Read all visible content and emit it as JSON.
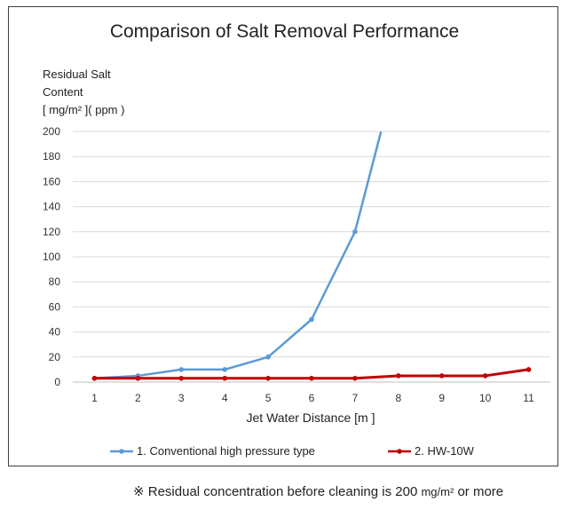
{
  "chart_data": {
    "type": "line",
    "title": "Comparison of Salt Removal Performance",
    "ylabel_lines": [
      "Residual Salt",
      "Content"
    ],
    "ylabel_unit": "[ mg/m² ]( ppm )",
    "xlabel": "Jet Water Distance [m ]",
    "x": [
      1,
      2,
      3,
      4,
      5,
      6,
      7,
      8,
      9,
      10,
      11
    ],
    "xlim": [
      1,
      11
    ],
    "ylim": [
      0,
      200
    ],
    "yticks": [
      0,
      20,
      40,
      60,
      80,
      100,
      120,
      140,
      160,
      180,
      200
    ],
    "grid": "horizontal",
    "legend_position": "bottom",
    "series": [
      {
        "name": "1. Conventional high pressure type",
        "color": "#5b9bd5",
        "x": [
          1,
          2,
          3,
          4,
          5,
          6,
          7,
          7.6
        ],
        "values": [
          3,
          5,
          10,
          10,
          20,
          50,
          120,
          200
        ]
      },
      {
        "name": "2. HW-10W",
        "color": "#c00000",
        "x": [
          1,
          2,
          3,
          4,
          5,
          6,
          7,
          8,
          9,
          10,
          11
        ],
        "values": [
          3,
          3,
          3,
          3,
          3,
          3,
          3,
          5,
          5,
          5,
          10
        ]
      }
    ]
  },
  "footnote": {
    "mark": "※",
    "text_before": "Residual concentration before cleaning is 200",
    "unit": "mg/m²",
    "text_after": "or more"
  }
}
